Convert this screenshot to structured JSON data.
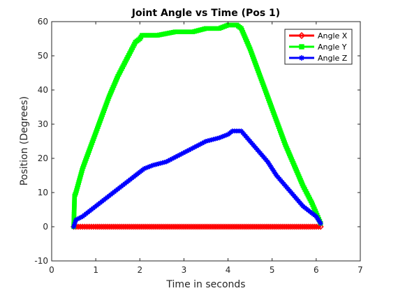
{
  "chart_data": {
    "type": "line",
    "title": "Joint Angle vs Time (Pos 1)",
    "xlabel": "Time in seconds",
    "ylabel": "Position (Degrees)",
    "xlim": [
      0,
      7
    ],
    "ylim": [
      -10,
      60
    ],
    "xticks": [
      0,
      1,
      2,
      3,
      4,
      5,
      6,
      7
    ],
    "yticks": [
      -10,
      0,
      10,
      20,
      30,
      40,
      50,
      60
    ],
    "grid": false,
    "legend_position": "top-right",
    "series": [
      {
        "name": "Angle X",
        "color": "#ff0000",
        "marker": "diamond",
        "x": [
          0.5,
          0.55,
          1.0,
          1.5,
          2.0,
          2.5,
          3.0,
          3.5,
          4.0,
          4.5,
          5.0,
          5.5,
          6.0,
          6.1
        ],
        "y": [
          0,
          0,
          0,
          0,
          0,
          0,
          0,
          0,
          0,
          0,
          0,
          0,
          0,
          0
        ]
      },
      {
        "name": "Angle Y",
        "color": "#00ff00",
        "marker": "square",
        "x": [
          0.5,
          0.52,
          0.55,
          0.7,
          0.9,
          1.1,
          1.3,
          1.5,
          1.7,
          1.9,
          2.0,
          2.05,
          2.1,
          2.4,
          2.8,
          3.2,
          3.5,
          3.8,
          4.0,
          4.1,
          4.2,
          4.3,
          4.5,
          4.7,
          4.9,
          5.1,
          5.3,
          5.5,
          5.7,
          5.9,
          6.0,
          6.1
        ],
        "y": [
          0,
          9,
          10,
          17,
          24,
          31,
          38,
          44,
          49,
          54,
          55,
          56,
          56,
          56,
          57,
          57,
          58,
          58,
          59,
          59,
          59,
          58,
          52,
          45,
          38,
          31,
          24,
          18,
          12,
          7,
          4,
          1
        ]
      },
      {
        "name": "Angle Z",
        "color": "#0000ff",
        "marker": "asterisk",
        "x": [
          0.5,
          0.55,
          0.7,
          0.9,
          1.1,
          1.3,
          1.5,
          1.7,
          1.9,
          2.0,
          2.1,
          2.3,
          2.6,
          2.9,
          3.2,
          3.5,
          3.8,
          4.0,
          4.1,
          4.2,
          4.3,
          4.5,
          4.7,
          4.9,
          5.1,
          5.3,
          5.5,
          5.7,
          5.9,
          6.0,
          6.1
        ],
        "y": [
          0,
          2,
          3,
          5,
          7,
          9,
          11,
          13,
          15,
          16,
          17,
          18,
          19,
          21,
          23,
          25,
          26,
          27,
          28,
          28,
          28,
          25,
          22,
          19,
          15,
          12,
          9,
          6,
          4,
          3,
          1
        ]
      }
    ]
  }
}
